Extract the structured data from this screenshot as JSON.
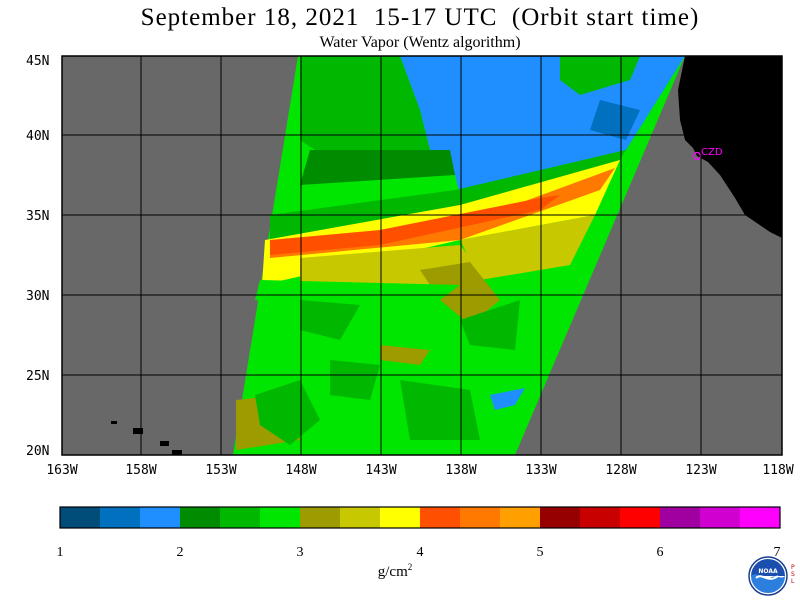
{
  "header": {
    "title": "September 18, 2021  15-17 UTC  (Orbit start time)",
    "subtitle": "Water Vapor (Wentz algorithm)"
  },
  "map": {
    "lat_labels": [
      "45N",
      "40N",
      "35N",
      "30N",
      "25N",
      "20N"
    ],
    "lon_labels": [
      "163W",
      "158W",
      "153W",
      "148W",
      "143W",
      "138W",
      "133W",
      "128W",
      "123W",
      "118W"
    ],
    "city_label": "CZD",
    "colors": {
      "land": "#000000",
      "no_data": "#686868",
      "graticule": "#000000",
      "city": "#ff00ff"
    }
  },
  "colorbar": {
    "units": "g/cm",
    "units_exp": "2",
    "ticks": [
      "1",
      "2",
      "3",
      "4",
      "5",
      "6",
      "7"
    ],
    "colors": [
      "#004d7a",
      "#0070bf",
      "#1f8fff",
      "#008c00",
      "#00b800",
      "#00e600",
      "#9c9c00",
      "#c8c800",
      "#ffff00",
      "#ff5000",
      "#ff7800",
      "#ffa000",
      "#960000",
      "#c80000",
      "#ff0000",
      "#a000a0",
      "#d000d0",
      "#ff00ff"
    ]
  },
  "logo": {
    "text": "NOAA",
    "side_text": "PSL"
  }
}
